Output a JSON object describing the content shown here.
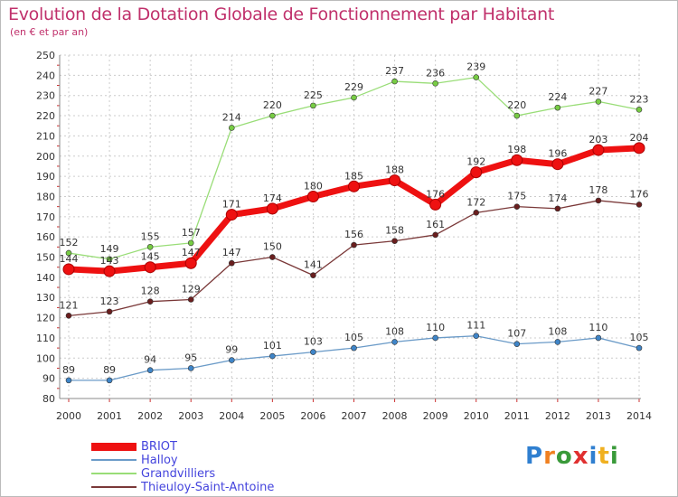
{
  "title": "Evolution de la Dotation Globale de Fonctionnement par Habitant",
  "subtitle": "(en € et par an)",
  "logo": {
    "text": "Proxiti",
    "letters": [
      "P",
      "r",
      "o",
      "x",
      "i",
      "t",
      "i"
    ],
    "colors": [
      "#2f7fd0",
      "#f08020",
      "#3a9a3a",
      "#e03030",
      "#2f7fd0",
      "#f0b020",
      "#3a9a3a"
    ]
  },
  "chart_data": {
    "type": "line",
    "title": "Evolution de la Dotation Globale de Fonctionnement par Habitant",
    "subtitle": "(en € et par an)",
    "x": [
      "2000",
      "2001",
      "2002",
      "2003",
      "2004",
      "2005",
      "2006",
      "2007",
      "2008",
      "2009",
      "2010",
      "2011",
      "2012",
      "2013",
      "2014"
    ],
    "ylim": [
      80,
      250
    ],
    "yticks": [
      "80",
      "90",
      "100",
      "110",
      "120",
      "130",
      "140",
      "150",
      "160",
      "170",
      "180",
      "190",
      "200",
      "210",
      "220",
      "230",
      "240",
      "250"
    ],
    "grid": true,
    "legend_position": "bottom-left",
    "series": [
      {
        "name": "BRIOT",
        "color": "#ee1111",
        "marker_color": "#ee1111",
        "emphasis": "thick",
        "values": [
          144,
          143,
          145,
          147,
          171,
          174,
          180,
          185,
          188,
          176,
          192,
          198,
          196,
          203,
          204
        ],
        "labels": [
          "144",
          "143",
          "145",
          "147",
          "171",
          "174",
          "180",
          "185",
          "188",
          "176",
          "192",
          "198",
          "196",
          "203",
          "204"
        ]
      },
      {
        "name": "Halloy",
        "color": "#6b9bc8",
        "marker_color": "#3f85c8",
        "emphasis": "thin",
        "values": [
          89,
          89,
          94,
          95,
          99,
          101,
          103,
          105,
          108,
          110,
          111,
          107,
          108,
          110,
          105
        ],
        "labels": [
          "89",
          "89",
          "94",
          "95",
          "99",
          "101",
          "103",
          "105",
          "108",
          "110",
          "111",
          "107",
          "108",
          "110",
          "105"
        ]
      },
      {
        "name": "Grandvilliers",
        "color": "#99dd77",
        "marker_color": "#77cc44",
        "emphasis": "thin",
        "values": [
          152,
          149,
          155,
          157,
          214,
          220,
          225,
          229,
          237,
          236,
          239,
          220,
          224,
          227,
          223
        ],
        "labels": [
          "152",
          "149",
          "155",
          "157",
          "214",
          "220",
          "225",
          "229",
          "237",
          "236",
          "239",
          "220",
          "224",
          "227",
          "223"
        ]
      },
      {
        "name": "Thieuloy-Saint-Antoine",
        "color": "#7a3838",
        "marker_color": "#6a1e1e",
        "emphasis": "thin",
        "values": [
          121,
          123,
          128,
          129,
          147,
          150,
          141,
          156,
          158,
          161,
          172,
          175,
          174,
          178,
          176
        ],
        "labels": [
          "121",
          "123",
          "128",
          "129",
          "147",
          "150",
          "141",
          "156",
          "158",
          "161",
          "172",
          "175",
          "174",
          "178",
          "176"
        ]
      }
    ]
  }
}
